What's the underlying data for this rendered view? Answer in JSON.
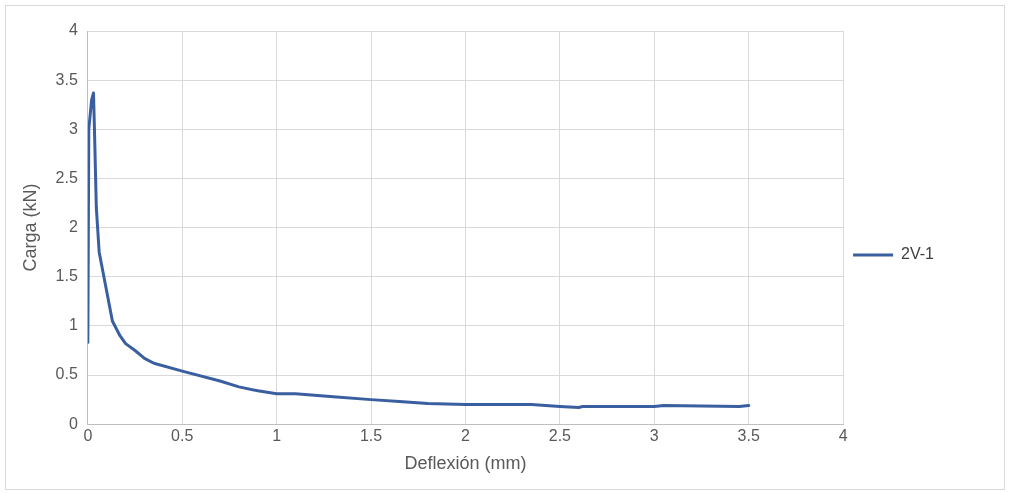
{
  "chart_data": {
    "type": "line",
    "xlabel": "Deflexión (mm)",
    "ylabel": "Carga (kN)",
    "xlim": [
      0,
      4
    ],
    "xticks": [
      0,
      0.5,
      1,
      1.5,
      2,
      2.5,
      3,
      3.5,
      4
    ],
    "ylim": [
      0,
      4
    ],
    "yticks": [
      0,
      0.5,
      1,
      1.5,
      2,
      2.5,
      3,
      3.5,
      4
    ],
    "grid": true,
    "legend": "right",
    "marker": "none",
    "line_style": "solid",
    "series": [
      {
        "name": "2V-1",
        "color": "#3a5fa0",
        "x": [
          0,
          0.005,
          0.02,
          0.03,
          0.035,
          0.045,
          0.06,
          0.1,
          0.13,
          0.17,
          0.2,
          0.25,
          0.3,
          0.35,
          0.5,
          0.7,
          0.8,
          0.9,
          1.0,
          1.1,
          1.3,
          1.5,
          1.65,
          1.8,
          2.0,
          2.2,
          2.25,
          2.35,
          2.5,
          2.6,
          2.62,
          2.9,
          3.0,
          3.05,
          3.45,
          3.5
        ],
        "values": [
          0.83,
          3.0,
          3.3,
          3.37,
          3.0,
          2.2,
          1.75,
          1.35,
          1.05,
          0.9,
          0.82,
          0.75,
          0.67,
          0.62,
          0.54,
          0.44,
          0.38,
          0.34,
          0.31,
          0.31,
          0.28,
          0.25,
          0.23,
          0.21,
          0.2,
          0.2,
          0.2,
          0.2,
          0.18,
          0.17,
          0.18,
          0.18,
          0.18,
          0.19,
          0.18,
          0.19
        ]
      }
    ]
  }
}
